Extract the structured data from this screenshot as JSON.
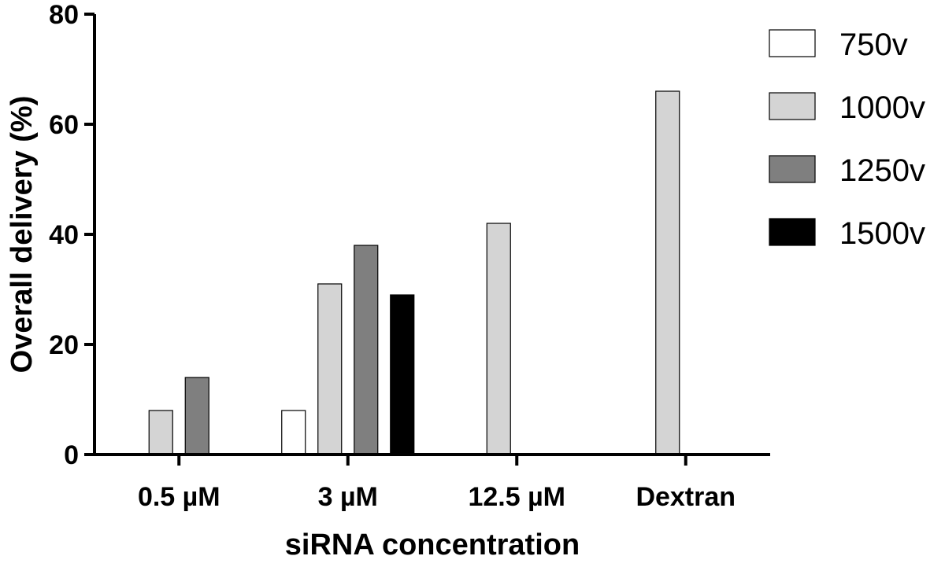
{
  "chart_data": {
    "type": "bar",
    "xlabel": "siRNA concentration",
    "ylabel": "Overall delivery (%)",
    "ylim": [
      0,
      80
    ],
    "yticks": [
      "0",
      "20",
      "40",
      "60",
      "80"
    ],
    "grid": false,
    "legend_position": "right",
    "categories": [
      "0.5 µM",
      "3 µM",
      "12.5 µM",
      "Dextran"
    ],
    "series": [
      {
        "name": "750v",
        "color": "#ffffff",
        "values": [
          null,
          8,
          null,
          null
        ]
      },
      {
        "name": "1000v",
        "color": "#d4d4d4",
        "values": [
          8,
          31,
          42,
          66
        ]
      },
      {
        "name": "1250v",
        "color": "#7f7f7f",
        "values": [
          14,
          38,
          null,
          null
        ]
      },
      {
        "name": "1500v",
        "color": "#000000",
        "values": [
          null,
          29,
          null,
          null
        ]
      }
    ]
  }
}
